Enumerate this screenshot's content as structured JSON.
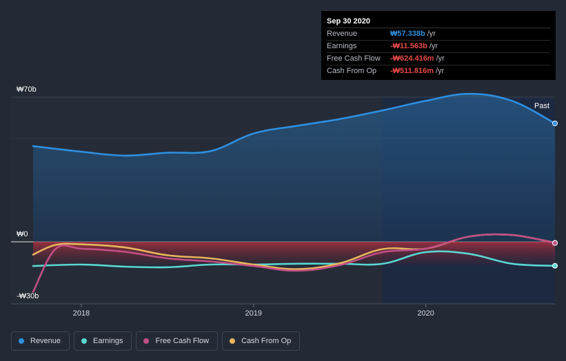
{
  "chart_data": {
    "type": "line",
    "currency_prefix": "₩",
    "ylim": [
      -30,
      70
    ],
    "y_ticks": [
      {
        "value": 70,
        "label": "₩70b"
      },
      {
        "value": 0,
        "label": "₩0"
      },
      {
        "value": -30,
        "label": "-₩30b"
      }
    ],
    "x_range": [
      2017.72,
      2020.75
    ],
    "x_ticks": [
      {
        "value": 2018,
        "label": "2018"
      },
      {
        "value": 2019,
        "label": "2019"
      },
      {
        "value": 2020,
        "label": "2020"
      }
    ],
    "highlight_start": 2019.75,
    "past_label": "Past",
    "series": [
      {
        "name": "Revenue",
        "color": "#2e8fe0",
        "fill": true,
        "points": [
          [
            2017.72,
            46.3
          ],
          [
            2018.0,
            43.6
          ],
          [
            2018.25,
            41.7
          ],
          [
            2018.5,
            43.1
          ],
          [
            2018.75,
            43.9
          ],
          [
            2019.0,
            52.4
          ],
          [
            2019.25,
            56.1
          ],
          [
            2019.5,
            59.4
          ],
          [
            2019.75,
            63.6
          ],
          [
            2020.0,
            68.2
          ],
          [
            2020.25,
            71.6
          ],
          [
            2020.5,
            68.2
          ],
          [
            2020.75,
            57.3
          ]
        ]
      },
      {
        "name": "Earnings",
        "color": "#5ad7d2",
        "fill": false,
        "points": [
          [
            2017.72,
            -11.7
          ],
          [
            2018.0,
            -11.0
          ],
          [
            2018.25,
            -12.0
          ],
          [
            2018.5,
            -12.3
          ],
          [
            2018.75,
            -11.0
          ],
          [
            2019.0,
            -11.0
          ],
          [
            2019.25,
            -10.6
          ],
          [
            2019.5,
            -10.6
          ],
          [
            2019.75,
            -10.6
          ],
          [
            2020.0,
            -5.0
          ],
          [
            2020.25,
            -5.8
          ],
          [
            2020.5,
            -10.6
          ],
          [
            2020.75,
            -11.6
          ]
        ]
      },
      {
        "name": "Free Cash Flow",
        "color": "#c04f86",
        "fill": false,
        "points": [
          [
            2017.72,
            -24.3
          ],
          [
            2017.85,
            -3.5
          ],
          [
            2018.0,
            -3.3
          ],
          [
            2018.25,
            -4.8
          ],
          [
            2018.5,
            -8.0
          ],
          [
            2018.75,
            -9.5
          ],
          [
            2019.0,
            -11.7
          ],
          [
            2019.25,
            -14.0
          ],
          [
            2019.5,
            -11.3
          ],
          [
            2019.75,
            -5.0
          ],
          [
            2020.0,
            -3.3
          ],
          [
            2020.25,
            2.5
          ],
          [
            2020.5,
            3.3
          ],
          [
            2020.75,
            -0.6
          ]
        ]
      },
      {
        "name": "Cash From Op",
        "color": "#e8b55e",
        "fill": false,
        "points": [
          [
            2017.72,
            -6.2
          ],
          [
            2017.85,
            -1.5
          ],
          [
            2018.0,
            -1.2
          ],
          [
            2018.25,
            -2.7
          ],
          [
            2018.5,
            -6.5
          ],
          [
            2018.75,
            -8.0
          ],
          [
            2019.0,
            -11.0
          ],
          [
            2019.25,
            -13.2
          ],
          [
            2019.5,
            -10.4
          ],
          [
            2019.75,
            -3.5
          ],
          [
            2020.0,
            -3.3
          ],
          [
            2020.25,
            2.5
          ],
          [
            2020.5,
            3.3
          ],
          [
            2020.75,
            -0.5
          ]
        ]
      }
    ]
  },
  "tooltip": {
    "date": "Sep 30 2020",
    "rows": [
      {
        "label": "Revenue",
        "value": "₩57.338b",
        "unit": "/yr",
        "color": "#2e8fe0"
      },
      {
        "label": "Earnings",
        "value": "-₩11.563b",
        "unit": "/yr",
        "color": "#e84a4a"
      },
      {
        "label": "Free Cash Flow",
        "value": "-₩624.416m",
        "unit": "/yr",
        "color": "#e84a4a"
      },
      {
        "label": "Cash From Op",
        "value": "-₩511.816m",
        "unit": "/yr",
        "color": "#e84a4a"
      }
    ]
  },
  "legend": [
    {
      "label": "Revenue",
      "color": "#2e8fe0"
    },
    {
      "label": "Earnings",
      "color": "#5ad7d2"
    },
    {
      "label": "Free Cash Flow",
      "color": "#c04f86"
    },
    {
      "label": "Cash From Op",
      "color": "#e8b55e"
    }
  ]
}
